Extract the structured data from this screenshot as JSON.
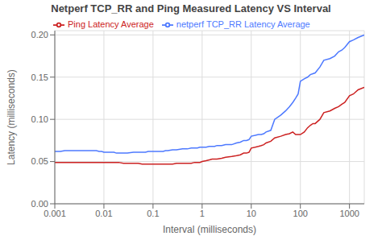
{
  "chart_data": {
    "type": "line",
    "title": "Netperf TCP_RR and Ping Measured Latency VS Interval",
    "xlabel": "Interval (milliseconds)",
    "ylabel": "Latency (milliseconds)",
    "log": "x",
    "grid": true,
    "legend": "upper left",
    "xlim": [
      0.001,
      2000
    ],
    "xticks": [
      0.001,
      0.01,
      0.1,
      1,
      10,
      100,
      1000
    ],
    "ylim": [
      0.0,
      0.205
    ],
    "yticks": [
      {
        "value": 0.0,
        "label": "0.00"
      },
      {
        "value": 0.05,
        "label": "0.05"
      },
      {
        "value": 0.1,
        "label": "0.10"
      },
      {
        "value": 0.15,
        "label": "0.15"
      },
      {
        "value": 0.2,
        "label": "0.20"
      }
    ],
    "x": [
      0.001,
      0.0013,
      0.0016,
      0.002,
      0.0025,
      0.003,
      0.004,
      0.005,
      0.006,
      0.007,
      0.008,
      0.009,
      0.01,
      0.012,
      0.014,
      0.016,
      0.018,
      0.02,
      0.025,
      0.03,
      0.04,
      0.05,
      0.06,
      0.07,
      0.08,
      0.09,
      0.1,
      0.12,
      0.14,
      0.16,
      0.18,
      0.2,
      0.25,
      0.3,
      0.4,
      0.5,
      0.6,
      0.7,
      0.8,
      0.9,
      1.0,
      1.2,
      1.4,
      1.6,
      1.8,
      2.0,
      2.5,
      3.0,
      4.0,
      5.0,
      6.0,
      7.0,
      8.0,
      9.0,
      10.0,
      12.0,
      14.0,
      16.0,
      18.0,
      20.0,
      25.0,
      30.0,
      40.0,
      50.0,
      60.0,
      70.0,
      80.0,
      90.0,
      100.0,
      120.0,
      140.0,
      160.0,
      180.0,
      200.0,
      250.0,
      300.0,
      400.0,
      500.0,
      600.0,
      700.0,
      800.0,
      1000.0,
      1200.0,
      1500.0,
      2000.0
    ],
    "series": [
      {
        "name": "netperf TCP_RR Latency Average",
        "color": "#4d79ff",
        "values": [
          0.062,
          0.062,
          0.063,
          0.063,
          0.063,
          0.063,
          0.063,
          0.063,
          0.063,
          0.063,
          0.062,
          0.062,
          0.061,
          0.061,
          0.061,
          0.061,
          0.06,
          0.06,
          0.06,
          0.06,
          0.061,
          0.061,
          0.061,
          0.061,
          0.062,
          0.062,
          0.062,
          0.062,
          0.062,
          0.062,
          0.063,
          0.063,
          0.064,
          0.064,
          0.065,
          0.065,
          0.066,
          0.066,
          0.066,
          0.067,
          0.067,
          0.067,
          0.068,
          0.068,
          0.068,
          0.069,
          0.069,
          0.07,
          0.07,
          0.072,
          0.073,
          0.075,
          0.075,
          0.076,
          0.08,
          0.081,
          0.082,
          0.082,
          0.083,
          0.085,
          0.087,
          0.1,
          0.105,
          0.11,
          0.115,
          0.12,
          0.125,
          0.13,
          0.145,
          0.148,
          0.15,
          0.153,
          0.154,
          0.155,
          0.162,
          0.17,
          0.172,
          0.175,
          0.18,
          0.182,
          0.185,
          0.192,
          0.194,
          0.197,
          0.2
        ]
      },
      {
        "name": "Ping Latency Average",
        "color": "#cc2222",
        "values": [
          0.049,
          0.049,
          0.049,
          0.049,
          0.049,
          0.049,
          0.049,
          0.049,
          0.049,
          0.049,
          0.049,
          0.049,
          0.049,
          0.049,
          0.049,
          0.049,
          0.049,
          0.049,
          0.048,
          0.048,
          0.048,
          0.048,
          0.047,
          0.047,
          0.047,
          0.047,
          0.047,
          0.047,
          0.047,
          0.047,
          0.047,
          0.047,
          0.047,
          0.048,
          0.048,
          0.048,
          0.048,
          0.049,
          0.049,
          0.049,
          0.05,
          0.051,
          0.052,
          0.053,
          0.053,
          0.053,
          0.054,
          0.055,
          0.056,
          0.057,
          0.058,
          0.06,
          0.06,
          0.061,
          0.066,
          0.067,
          0.068,
          0.069,
          0.07,
          0.072,
          0.074,
          0.078,
          0.08,
          0.082,
          0.083,
          0.085,
          0.082,
          0.082,
          0.082,
          0.085,
          0.09,
          0.093,
          0.095,
          0.095,
          0.1,
          0.108,
          0.11,
          0.113,
          0.115,
          0.118,
          0.12,
          0.128,
          0.13,
          0.135,
          0.138
        ]
      }
    ]
  }
}
